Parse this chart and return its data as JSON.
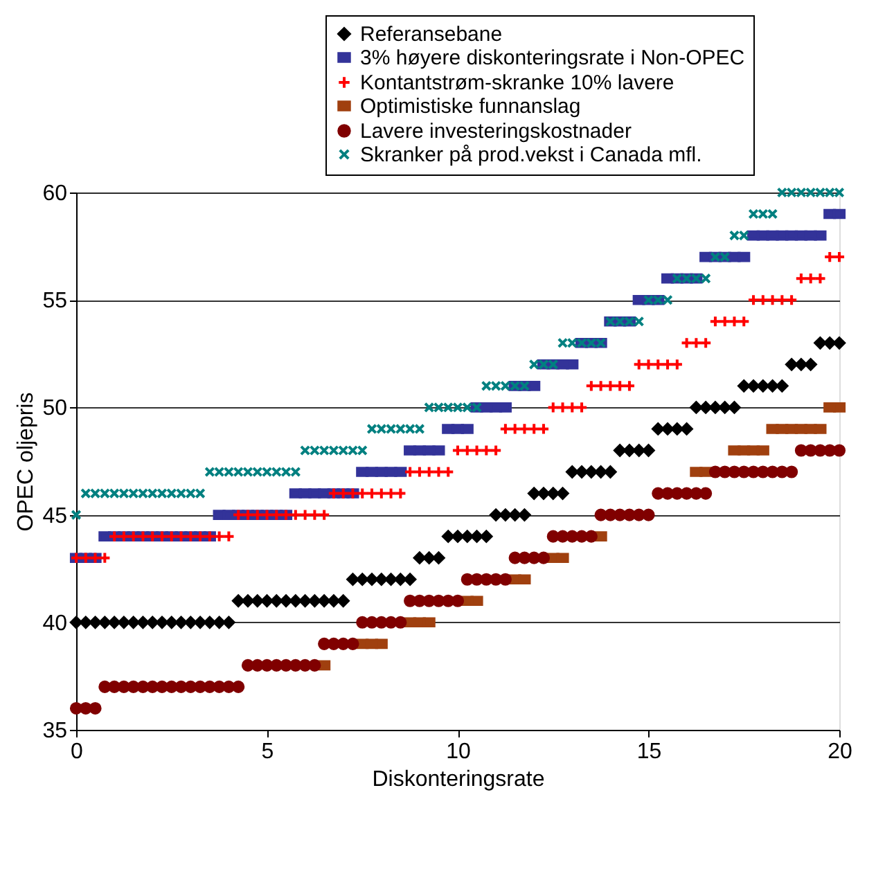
{
  "chart_data": {
    "type": "scatter",
    "xlabel": "Diskonteringsrate",
    "ylabel": "OPEC oljepris",
    "x": [
      0,
      0.25,
      0.5,
      0.75,
      1,
      1.25,
      1.5,
      1.75,
      2,
      2.25,
      2.5,
      2.75,
      3,
      3.25,
      3.5,
      3.75,
      4,
      4.25,
      4.5,
      4.75,
      5,
      5.25,
      5.5,
      5.75,
      6,
      6.25,
      6.5,
      6.75,
      7,
      7.25,
      7.5,
      7.75,
      8,
      8.25,
      8.5,
      8.75,
      9,
      9.25,
      9.5,
      9.75,
      10,
      10.25,
      10.5,
      10.75,
      11,
      11.25,
      11.5,
      11.75,
      12,
      12.25,
      12.5,
      12.75,
      13,
      13.25,
      13.5,
      13.75,
      14,
      14.25,
      14.5,
      14.75,
      15,
      15.25,
      15.5,
      15.75,
      16,
      16.25,
      16.5,
      16.75,
      17,
      17.25,
      17.5,
      17.75,
      18,
      18.25,
      18.5,
      18.75,
      19,
      19.25,
      19.5,
      19.75,
      20
    ],
    "xlim": [
      0,
      20
    ],
    "xticks": [
      0,
      5,
      10,
      15,
      20
    ],
    "ylim": [
      35,
      60
    ],
    "yticks": [
      35,
      40,
      45,
      50,
      55,
      60
    ],
    "grid": "y",
    "legend": "top right",
    "series": [
      {
        "name": "Referansebane",
        "color": "#000000",
        "marker": "diamond",
        "values": [
          40,
          40,
          40,
          40,
          40,
          40,
          40,
          40,
          40,
          40,
          40,
          40,
          40,
          40,
          40,
          40,
          40,
          41,
          41,
          41,
          41,
          41,
          41,
          41,
          41,
          41,
          41,
          41,
          41,
          42,
          42,
          42,
          42,
          42,
          42,
          42,
          43,
          43,
          43,
          44,
          44,
          44,
          44,
          44,
          45,
          45,
          45,
          45,
          46,
          46,
          46,
          46,
          47,
          47,
          47,
          47,
          47,
          48,
          48,
          48,
          48,
          49,
          49,
          49,
          49,
          50,
          50,
          50,
          50,
          50,
          51,
          51,
          51,
          51,
          51,
          52,
          52,
          52,
          53,
          53,
          53
        ]
      },
      {
        "name": "3% høyere diskonteringsrate i Non-OPEC",
        "color": "#333399",
        "marker": "square",
        "values": [
          43,
          43,
          43,
          44,
          44,
          44,
          44,
          44,
          44,
          44,
          44,
          44,
          44,
          44,
          44,
          45,
          45,
          45,
          45,
          45,
          45,
          45,
          45,
          46,
          46,
          46,
          46,
          46,
          46,
          46,
          47,
          47,
          47,
          47,
          47,
          48,
          48,
          48,
          48,
          49,
          49,
          49,
          50,
          50,
          50,
          50,
          51,
          51,
          51,
          52,
          52,
          52,
          52,
          53,
          53,
          53,
          54,
          54,
          54,
          55,
          55,
          55,
          56,
          56,
          56,
          56,
          57,
          57,
          57,
          57,
          57,
          58,
          58,
          58,
          58,
          58,
          58,
          58,
          58,
          59,
          59
        ]
      },
      {
        "name": "Kontantstrøm-skranke 10% lavere",
        "color": "#ff0000",
        "marker": "plus",
        "values": [
          43,
          43,
          43,
          43,
          44,
          44,
          44,
          44,
          44,
          44,
          44,
          44,
          44,
          44,
          44,
          44,
          44,
          45,
          45,
          45,
          45,
          45,
          45,
          45,
          45,
          45,
          45,
          46,
          46,
          46,
          46,
          46,
          46,
          46,
          46,
          47,
          47,
          47,
          47,
          47,
          48,
          48,
          48,
          48,
          48,
          49,
          49,
          49,
          49,
          49,
          50,
          50,
          50,
          50,
          51,
          51,
          51,
          51,
          51,
          52,
          52,
          52,
          52,
          52,
          53,
          53,
          53,
          54,
          54,
          54,
          54,
          55,
          55,
          55,
          55,
          55,
          56,
          56,
          56,
          57,
          57
        ]
      },
      {
        "name": "Optimistiske funnanslag",
        "color": "#a0400f",
        "marker": "square",
        "x": [
          6.5,
          7.5,
          7.75,
          8,
          8.75,
          9,
          9.25,
          10.25,
          10.5,
          11.5,
          11.75,
          12.5,
          12.75,
          13.75,
          16.25,
          16.5,
          17.25,
          17.5,
          17.75,
          18,
          18.25,
          18.5,
          18.75,
          19,
          19.25,
          19.5,
          19.75,
          20
        ],
        "values": [
          38,
          39,
          39,
          39,
          40,
          40,
          40,
          41,
          41,
          42,
          42,
          43,
          43,
          44,
          47,
          47,
          48,
          48,
          48,
          48,
          49,
          49,
          49,
          49,
          49,
          49,
          50,
          50
        ]
      },
      {
        "name": "Lavere investeringskostnader",
        "color": "#800000",
        "marker": "circle",
        "values": [
          36,
          36,
          36,
          37,
          37,
          37,
          37,
          37,
          37,
          37,
          37,
          37,
          37,
          37,
          37,
          37,
          37,
          37,
          38,
          38,
          38,
          38,
          38,
          38,
          38,
          38,
          39,
          39,
          39,
          39,
          40,
          40,
          40,
          40,
          40,
          41,
          41,
          41,
          41,
          41,
          41,
          42,
          42,
          42,
          42,
          42,
          43,
          43,
          43,
          43,
          44,
          44,
          44,
          44,
          44,
          45,
          45,
          45,
          45,
          45,
          45,
          46,
          46,
          46,
          46,
          46,
          46,
          47,
          47,
          47,
          47,
          47,
          47,
          47,
          47,
          47,
          48,
          48,
          48,
          48,
          48
        ]
      },
      {
        "name": "Skranker på prod.vekst i Canada mfl.",
        "color": "#008080",
        "marker": "x",
        "values": [
          45,
          46,
          46,
          46,
          46,
          46,
          46,
          46,
          46,
          46,
          46,
          46,
          46,
          46,
          47,
          47,
          47,
          47,
          47,
          47,
          47,
          47,
          47,
          47,
          48,
          48,
          48,
          48,
          48,
          48,
          48,
          49,
          49,
          49,
          49,
          49,
          49,
          50,
          50,
          50,
          50,
          50,
          50,
          51,
          51,
          51,
          51,
          51,
          52,
          52,
          52,
          53,
          53,
          53,
          53,
          53,
          54,
          54,
          54,
          54,
          55,
          55,
          55,
          56,
          56,
          56,
          56,
          57,
          57,
          58,
          58,
          59,
          59,
          59,
          60,
          60,
          60,
          60,
          60,
          60,
          60
        ]
      }
    ]
  }
}
